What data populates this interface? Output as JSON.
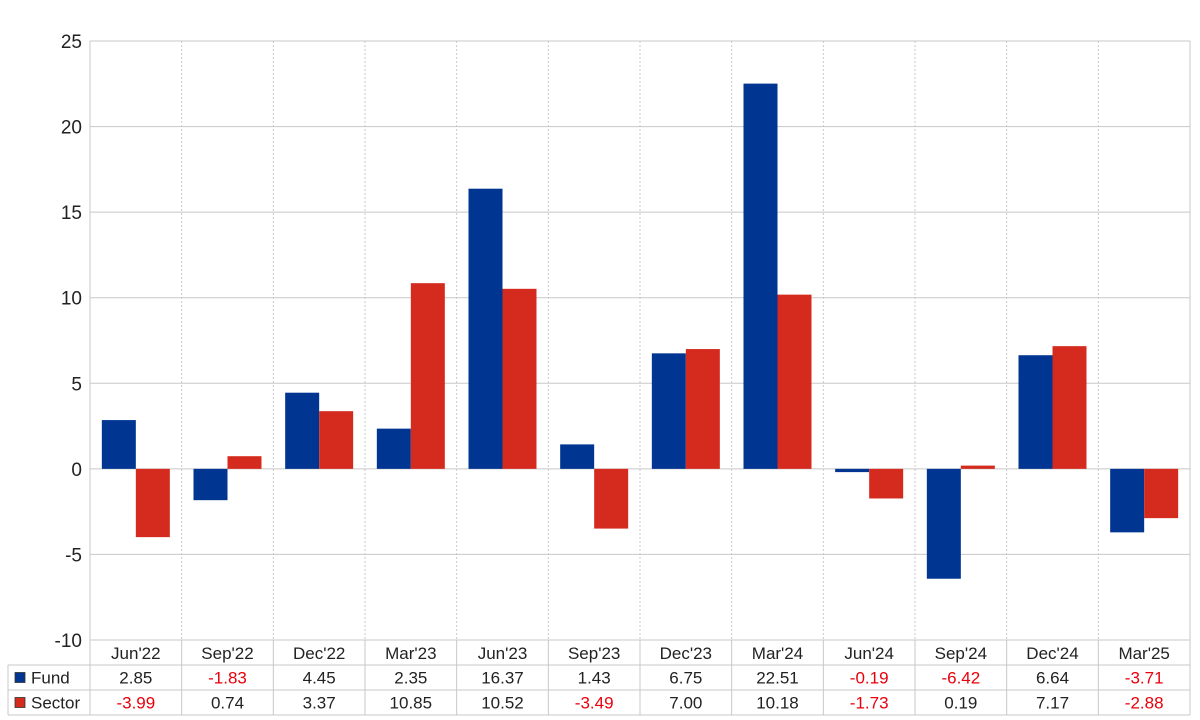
{
  "chart_data": {
    "type": "bar",
    "title": "",
    "xlabel": "",
    "ylabel": "",
    "ylim": [
      -10,
      25
    ],
    "yticks": [
      25,
      20,
      15,
      10,
      5,
      0,
      -5,
      -10
    ],
    "grid": true,
    "legend": "bottom-left data table",
    "categories": [
      "Jun'22",
      "Sep'22",
      "Dec'22",
      "Mar'23",
      "Jun'23",
      "Sep'23",
      "Dec'23",
      "Mar'24",
      "Jun'24",
      "Sep'24",
      "Dec'24",
      "Mar'25"
    ],
    "series": [
      {
        "name": "Fund",
        "color": "#003591",
        "values": [
          2.85,
          -1.83,
          4.45,
          2.35,
          16.37,
          1.43,
          6.75,
          22.51,
          -0.19,
          -6.42,
          6.64,
          -3.71
        ],
        "labels": [
          "2.85",
          "-1.83",
          "4.45",
          "2.35",
          "16.37",
          "1.43",
          "6.75",
          "22.51",
          "-0.19",
          "-6.42",
          "6.64",
          "-3.71"
        ]
      },
      {
        "name": "Sector",
        "color": "#d52b1e",
        "values": [
          -3.99,
          0.74,
          3.37,
          10.85,
          10.52,
          -3.49,
          7.0,
          10.18,
          -1.73,
          0.19,
          7.17,
          -2.88
        ],
        "labels": [
          "-3.99",
          "0.74",
          "3.37",
          "10.85",
          "10.52",
          "-3.49",
          "7.00",
          "10.18",
          "-1.73",
          "0.19",
          "7.17",
          "-2.88"
        ]
      }
    ],
    "colors": {
      "positive_text": "#222222",
      "negative_text": "#e8000b",
      "grid": "#c8c8c8"
    }
  }
}
